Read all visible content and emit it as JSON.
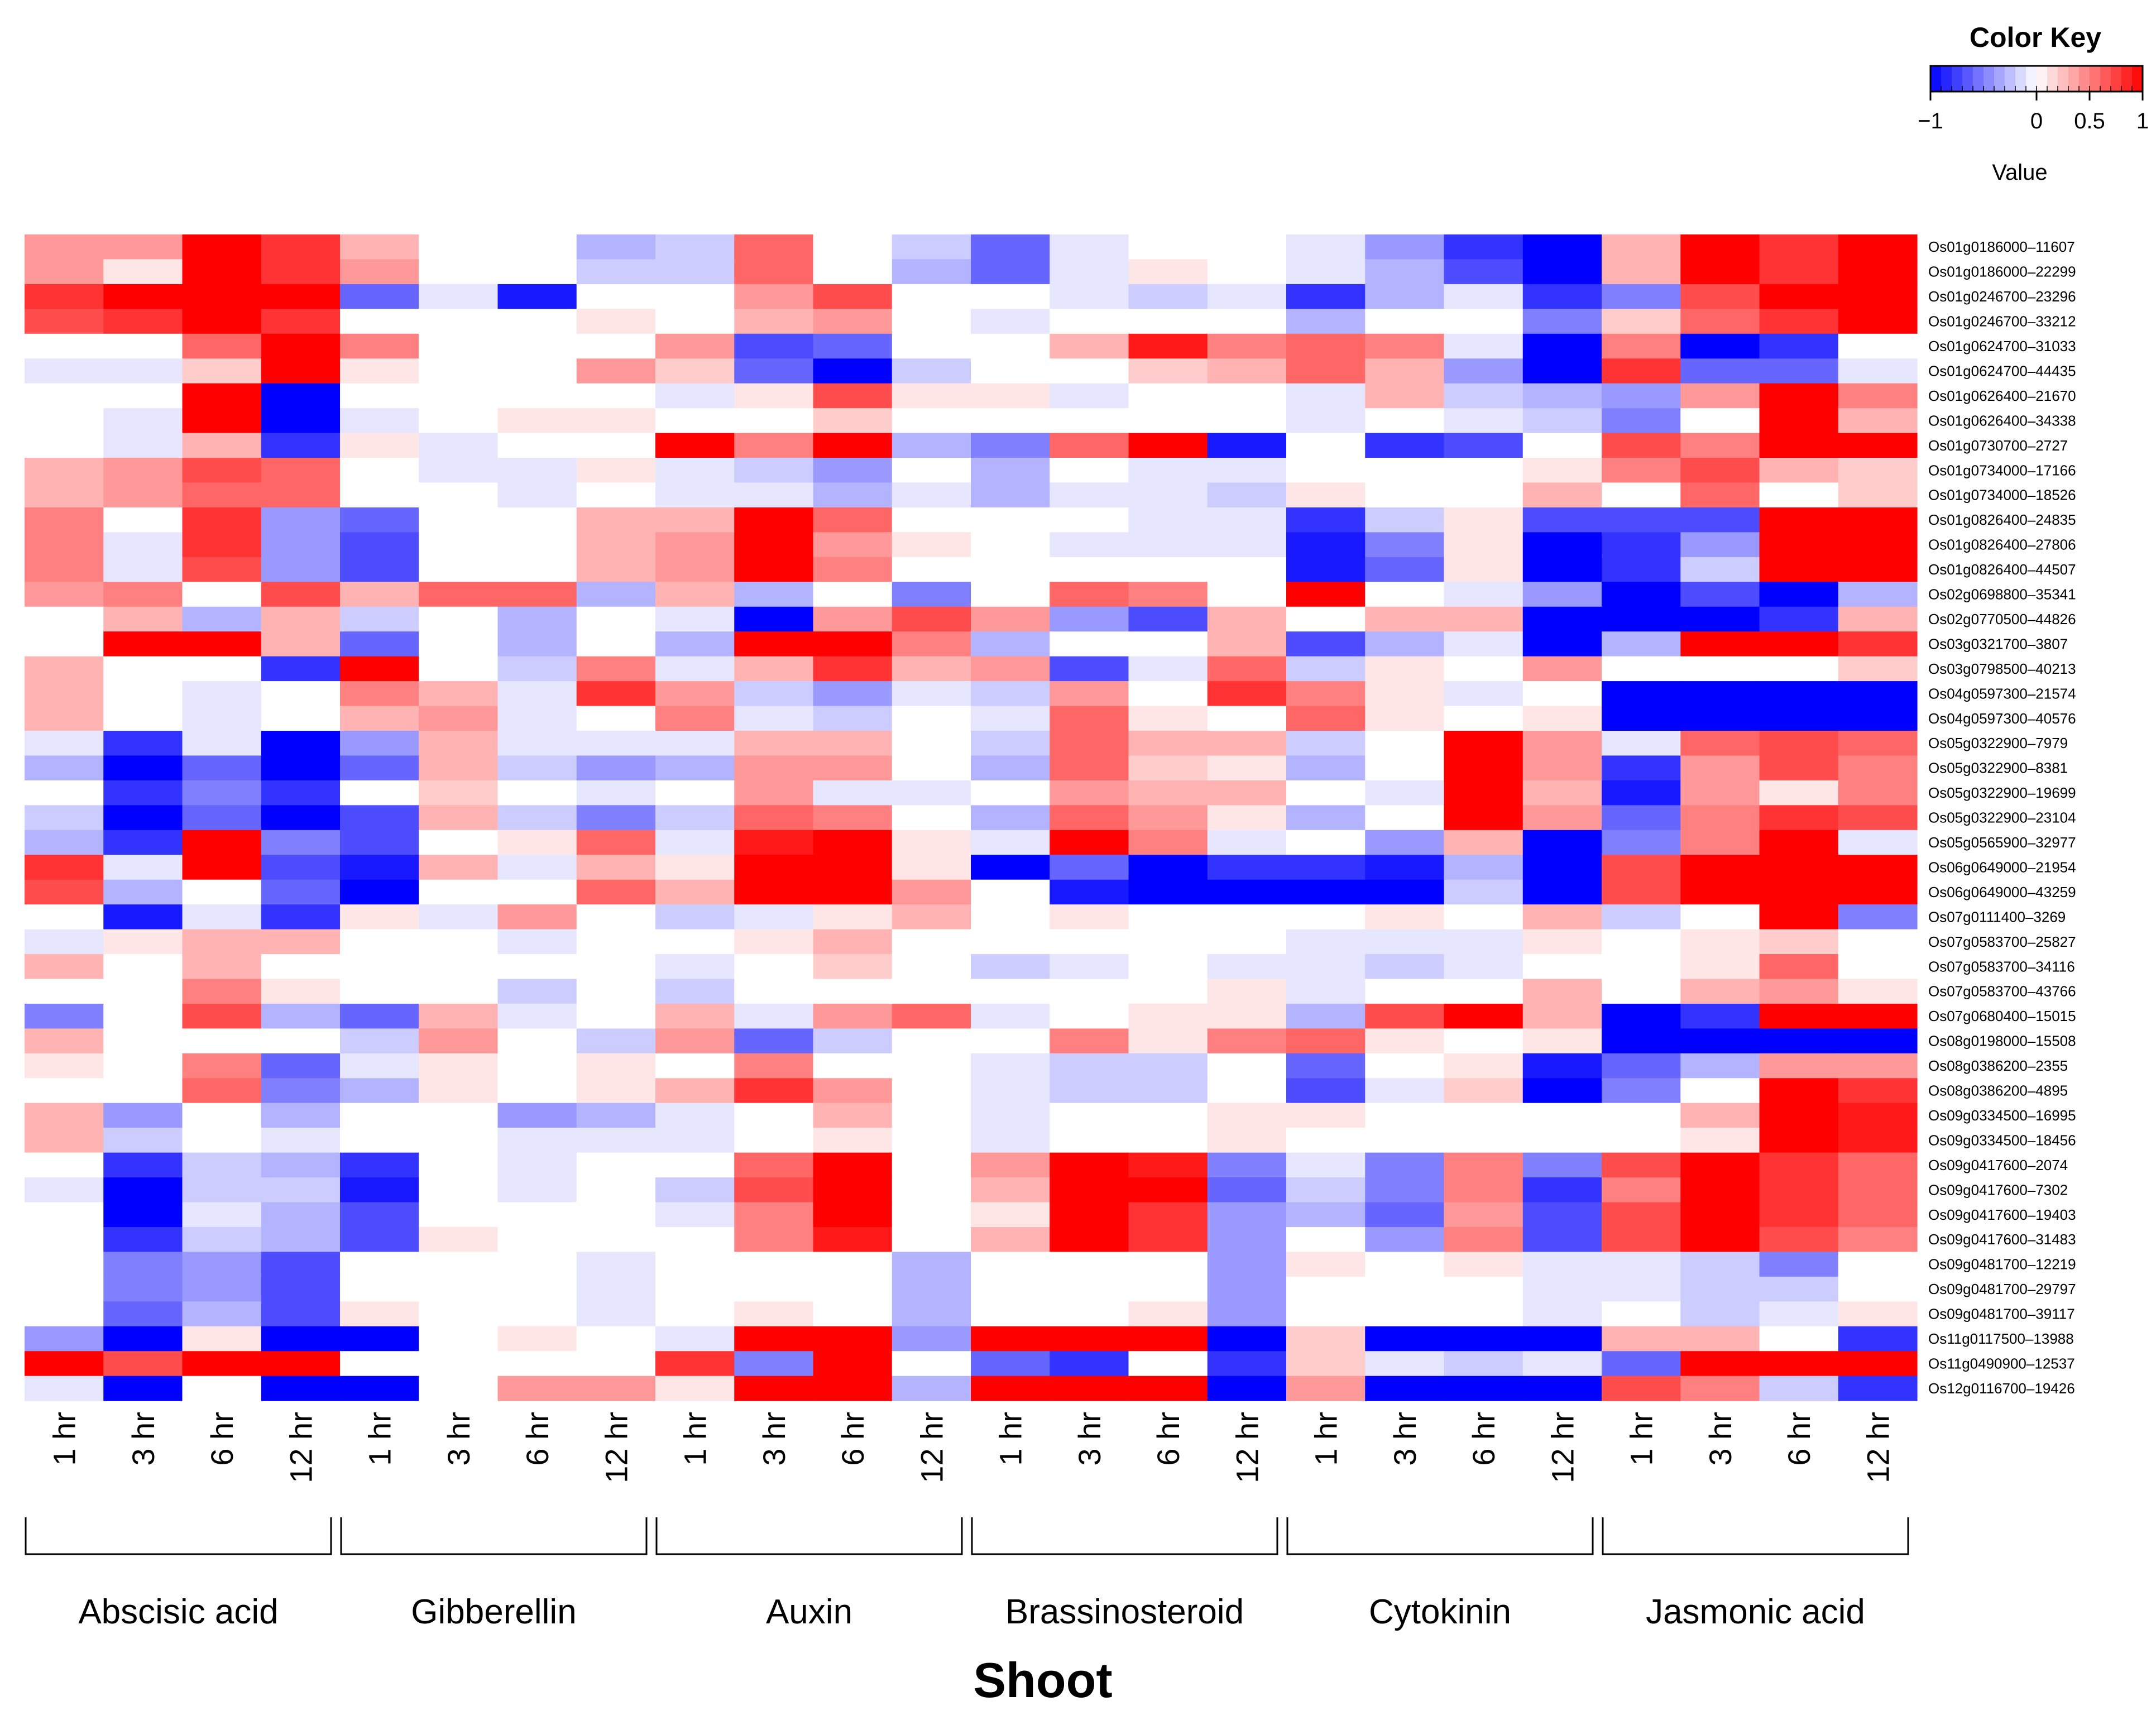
{
  "chart_data": {
    "type": "heatmap",
    "xlabel": "Shoot",
    "groups": [
      "Abscisic acid",
      "Gibberellin",
      "Auxin",
      "Brassinosteroid",
      "Cytokinin",
      "Jasmonic acid"
    ],
    "timepoints": [
      "1 hr",
      "3 hr",
      "6 hr",
      "12 hr"
    ],
    "rows": [
      "Os01g0186000–11607",
      "Os01g0186000–22299",
      "Os01g0246700–23296",
      "Os01g0246700–33212",
      "Os01g0624700–31033",
      "Os01g0624700–44435",
      "Os01g0626400–21670",
      "Os01g0626400–34338",
      "Os01g0730700–2727",
      "Os01g0734000–17166",
      "Os01g0734000–18526",
      "Os01g0826400–24835",
      "Os01g0826400–27806",
      "Os01g0826400–44507",
      "Os02g0698800–35341",
      "Os02g0770500–44826",
      "Os03g0321700–3807",
      "Os03g0798500–40213",
      "Os04g0597300–21574",
      "Os04g0597300–40576",
      "Os05g0322900–7979",
      "Os05g0322900–8381",
      "Os05g0322900–19699",
      "Os05g0322900–23104",
      "Os05g0565900–32977",
      "Os06g0649000–21954",
      "Os06g0649000–43259",
      "Os07g0111400–3269",
      "Os07g0583700–25827",
      "Os07g0583700–34116",
      "Os07g0583700–43766",
      "Os07g0680400–15015",
      "Os08g0198000–15508",
      "Os08g0386200–2355",
      "Os08g0386200–4895",
      "Os09g0334500–16995",
      "Os09g0334500–18456",
      "Os09g0417600–2074",
      "Os09g0417600–7302",
      "Os09g0417600–19403",
      "Os09g0417600–31483",
      "Os09g0481700–12219",
      "Os09g0481700–29797",
      "Os09g0481700–39117",
      "Os11g0117500–13988",
      "Os11g0490900–12537",
      "Os12g0116700–19426"
    ],
    "values": [
      [
        0.4,
        0.4,
        1,
        0.8,
        0.3,
        0,
        0,
        -0.3,
        -0.2,
        0.6,
        0,
        -0.2,
        -0.6,
        -0.1,
        0,
        0,
        -0.1,
        -0.4,
        -0.8,
        -1,
        0.3,
        1,
        0.8,
        1
      ],
      [
        0.4,
        0.1,
        1,
        0.8,
        0.4,
        0,
        0,
        -0.2,
        -0.2,
        0.6,
        0,
        -0.3,
        -0.6,
        -0.1,
        0.1,
        0,
        -0.1,
        -0.3,
        -0.7,
        -1,
        0.3,
        1,
        0.8,
        1
      ],
      [
        0.8,
        1,
        1,
        1,
        -0.6,
        -0.1,
        -0.9,
        0,
        0,
        0.4,
        0.7,
        0,
        0,
        -0.1,
        -0.2,
        -0.1,
        -0.8,
        -0.3,
        -0.1,
        -0.8,
        -0.5,
        0.7,
        1,
        1
      ],
      [
        0.7,
        0.8,
        1,
        0.8,
        0,
        0,
        0,
        0.1,
        0,
        0.3,
        0.4,
        0,
        -0.1,
        0,
        0,
        0,
        -0.3,
        0,
        0,
        -0.5,
        0.2,
        0.6,
        0.8,
        1
      ],
      [
        0,
        0,
        0.6,
        1,
        0.5,
        0,
        0,
        0,
        0.4,
        -0.7,
        -0.6,
        0,
        0,
        0.3,
        0.9,
        0.5,
        0.6,
        0.5,
        -0.1,
        -1,
        0.5,
        -1,
        -0.8,
        0
      ],
      [
        -0.1,
        -0.1,
        0.2,
        1,
        0.1,
        0,
        0,
        0.4,
        0.2,
        -0.6,
        -1,
        -0.2,
        0,
        0,
        0.2,
        0.3,
        0.6,
        0.3,
        -0.4,
        -1,
        0.8,
        -0.6,
        -0.6,
        -0.1
      ],
      [
        0,
        0,
        1,
        -1,
        0,
        0,
        0,
        0,
        -0.1,
        0.1,
        0.7,
        0.1,
        0.1,
        -0.1,
        0,
        0,
        -0.1,
        0.3,
        -0.2,
        -0.3,
        -0.4,
        0.4,
        1,
        0.5
      ],
      [
        0,
        -0.1,
        1,
        -1,
        -0.1,
        0,
        0.1,
        0.1,
        0,
        0,
        0.2,
        0,
        0,
        0,
        0,
        0,
        -0.1,
        0,
        -0.1,
        -0.2,
        -0.5,
        0,
        1,
        0.3
      ],
      [
        0,
        -0.1,
        0.3,
        -0.8,
        0.1,
        -0.1,
        0,
        0,
        1,
        0.5,
        1,
        -0.3,
        -0.5,
        0.6,
        1,
        -0.9,
        0,
        -0.8,
        -0.7,
        0,
        0.7,
        0.5,
        1,
        1
      ],
      [
        0.3,
        0.4,
        0.7,
        0.6,
        0,
        -0.1,
        -0.1,
        0.1,
        -0.1,
        -0.2,
        -0.4,
        0,
        -0.3,
        0,
        -0.1,
        -0.1,
        0,
        0,
        0,
        0.1,
        0.5,
        0.7,
        0.3,
        0.2
      ],
      [
        0.3,
        0.4,
        0.6,
        0.6,
        0,
        0,
        -0.1,
        0,
        -0.1,
        -0.1,
        -0.3,
        -0.1,
        -0.3,
        -0.1,
        -0.1,
        -0.2,
        0.1,
        0,
        0,
        0.3,
        0,
        0.6,
        0,
        0.2
      ],
      [
        0.5,
        0,
        0.8,
        -0.4,
        -0.6,
        0,
        0,
        0.3,
        0.3,
        1,
        0.6,
        0,
        0,
        0,
        -0.1,
        -0.1,
        -0.8,
        -0.2,
        0.1,
        -0.7,
        -0.7,
        -0.7,
        1,
        1
      ],
      [
        0.5,
        -0.1,
        0.8,
        -0.4,
        -0.7,
        0,
        0,
        0.3,
        0.4,
        1,
        0.4,
        0.1,
        0,
        -0.1,
        -0.1,
        -0.1,
        -0.9,
        -0.5,
        0.1,
        -1,
        -0.8,
        -0.4,
        1,
        1
      ],
      [
        0.5,
        -0.1,
        0.7,
        -0.4,
        -0.7,
        0,
        0,
        0.3,
        0.4,
        1,
        0.5,
        0,
        0,
        0,
        0,
        0,
        -0.9,
        -0.6,
        0.1,
        -1,
        -0.8,
        -0.2,
        1,
        1
      ],
      [
        0.4,
        0.5,
        0,
        0.7,
        0.3,
        0.6,
        0.6,
        -0.3,
        0.3,
        -0.3,
        0,
        -0.5,
        0,
        0.6,
        0.5,
        0,
        1,
        0,
        -0.1,
        -0.4,
        -1,
        -0.7,
        -1,
        -0.3
      ],
      [
        0,
        0.3,
        -0.3,
        0.3,
        -0.2,
        0,
        -0.3,
        0,
        -0.1,
        -1,
        0.4,
        0.7,
        0.4,
        -0.4,
        -0.7,
        0.3,
        0,
        0.3,
        0.3,
        -1,
        -1,
        -1,
        -0.8,
        0.3
      ],
      [
        0,
        1,
        1,
        0.3,
        -0.6,
        0,
        -0.3,
        0,
        -0.3,
        1,
        1,
        0.5,
        -0.3,
        0,
        0,
        0.3,
        -0.7,
        -0.3,
        -0.1,
        -1,
        -0.3,
        1,
        1,
        0.8
      ],
      [
        0.3,
        0,
        0,
        -0.8,
        1,
        0,
        -0.2,
        0.5,
        -0.1,
        0.3,
        0.8,
        0.3,
        0.4,
        -0.7,
        -0.1,
        0.6,
        -0.2,
        0.1,
        0,
        0.4,
        0,
        0,
        0,
        0.2
      ],
      [
        0.3,
        0,
        -0.1,
        0,
        0.5,
        0.3,
        -0.1,
        0.8,
        0.4,
        -0.2,
        -0.4,
        -0.1,
        -0.2,
        0.4,
        0,
        0.8,
        0.5,
        0.1,
        -0.1,
        0,
        -1,
        -1,
        -1,
        -1
      ],
      [
        0.3,
        0,
        -0.1,
        0,
        0.3,
        0.4,
        -0.1,
        0,
        0.5,
        -0.1,
        -0.2,
        0,
        -0.1,
        0.6,
        0.1,
        0,
        0.6,
        0.1,
        0,
        0.1,
        -1,
        -1,
        -1,
        -1
      ],
      [
        -0.1,
        -0.8,
        -0.1,
        -1,
        -0.4,
        0.3,
        -0.1,
        -0.1,
        -0.1,
        0.3,
        0.3,
        0,
        -0.2,
        0.6,
        0.3,
        0.3,
        -0.2,
        0,
        1,
        0.4,
        -0.1,
        0.6,
        0.7,
        0.6
      ],
      [
        -0.3,
        -1,
        -0.6,
        -1,
        -0.6,
        0.3,
        -0.2,
        -0.4,
        -0.3,
        0.4,
        0.4,
        0,
        -0.3,
        0.6,
        0.2,
        0.1,
        -0.3,
        0,
        1,
        0.4,
        -0.8,
        0.4,
        0.7,
        0.5
      ],
      [
        0,
        -0.8,
        -0.5,
        -0.8,
        0,
        0.2,
        0,
        -0.1,
        0,
        0.4,
        -0.1,
        -0.1,
        0,
        0.4,
        0.3,
        0.3,
        0,
        -0.1,
        1,
        0.3,
        -0.9,
        0.4,
        0.1,
        0.5
      ],
      [
        -0.2,
        -1,
        -0.6,
        -1,
        -0.7,
        0.3,
        -0.2,
        -0.5,
        -0.2,
        0.6,
        0.5,
        0,
        -0.3,
        0.6,
        0.4,
        0.1,
        -0.3,
        0,
        1,
        0.4,
        -0.6,
        0.5,
        0.8,
        0.7
      ],
      [
        -0.3,
        -0.8,
        1,
        -0.5,
        -0.7,
        0,
        0.1,
        0.6,
        -0.1,
        0.9,
        1,
        0.1,
        -0.1,
        1,
        0.5,
        -0.1,
        0,
        -0.4,
        0.3,
        -1,
        -0.5,
        0.5,
        1,
        -0.1
      ],
      [
        0.8,
        -0.1,
        1,
        -0.7,
        -0.9,
        0.3,
        -0.1,
        0.3,
        0.1,
        1,
        1,
        0.1,
        -1,
        -0.6,
        -1,
        -0.8,
        -0.8,
        -0.9,
        -0.3,
        -1,
        0.7,
        1,
        1,
        1
      ],
      [
        0.7,
        -0.3,
        0,
        -0.6,
        -1,
        0,
        0,
        0.6,
        0.3,
        1,
        1,
        0.4,
        0,
        -0.9,
        -1,
        -1,
        -1,
        -1,
        -0.2,
        -1,
        0.7,
        1,
        1,
        1
      ],
      [
        0,
        -0.9,
        -0.1,
        -0.8,
        0.1,
        -0.1,
        0.4,
        0,
        -0.2,
        -0.1,
        0.1,
        0.3,
        0,
        0.1,
        0,
        0,
        0,
        0.1,
        0,
        0.3,
        -0.2,
        0,
        1,
        -0.5
      ],
      [
        -0.1,
        0.1,
        0.3,
        0.3,
        0,
        0,
        -0.1,
        0,
        0,
        0.1,
        0.3,
        0,
        0,
        0,
        0,
        0,
        -0.1,
        -0.1,
        -0.1,
        0.1,
        0,
        0.1,
        0.2,
        0
      ],
      [
        0.3,
        0,
        0.3,
        0,
        0,
        0,
        0,
        0,
        -0.1,
        0,
        0.2,
        0,
        -0.2,
        -0.1,
        0,
        -0.1,
        -0.1,
        -0.2,
        -0.1,
        0,
        0,
        0.1,
        0.6,
        0
      ],
      [
        0,
        0,
        0.5,
        0.1,
        0,
        0,
        -0.2,
        0,
        -0.2,
        0,
        0,
        0,
        0,
        0,
        0,
        0.1,
        -0.1,
        0,
        0,
        0.3,
        0,
        0.3,
        0.4,
        0.1
      ],
      [
        -0.5,
        0,
        0.7,
        -0.3,
        -0.6,
        0.3,
        -0.1,
        0,
        0.3,
        -0.1,
        0.4,
        0.6,
        -0.1,
        0,
        0.1,
        0.1,
        -0.3,
        0.7,
        1,
        0.3,
        -1,
        -0.8,
        1,
        1
      ],
      [
        0.3,
        0,
        0,
        0,
        -0.2,
        0.4,
        0,
        -0.2,
        0.4,
        -0.6,
        -0.2,
        0,
        0,
        0.5,
        0.1,
        0.5,
        0.6,
        0.1,
        0,
        0.1,
        -1,
        -1,
        -1,
        -1
      ],
      [
        0.1,
        0,
        0.5,
        -0.6,
        -0.1,
        0.1,
        0,
        0.1,
        0,
        0.5,
        0,
        0,
        -0.1,
        -0.2,
        -0.2,
        0,
        -0.6,
        0,
        0.1,
        -0.9,
        -0.6,
        -0.3,
        0.4,
        0.4
      ],
      [
        0,
        0,
        0.6,
        -0.5,
        -0.3,
        0.1,
        0,
        0.1,
        0.3,
        0.8,
        0.4,
        0,
        -0.1,
        -0.2,
        -0.2,
        0,
        -0.7,
        -0.1,
        0.2,
        -1,
        -0.5,
        0,
        1,
        0.8
      ],
      [
        0.3,
        -0.4,
        0,
        -0.3,
        0,
        0,
        -0.4,
        -0.3,
        -0.1,
        0,
        0.3,
        0,
        -0.1,
        0,
        0,
        0.1,
        0.1,
        0,
        0,
        0,
        0,
        0.3,
        1,
        0.9
      ],
      [
        0.3,
        -0.2,
        0,
        -0.1,
        0,
        0,
        -0.1,
        -0.1,
        -0.1,
        0,
        0.1,
        0,
        -0.1,
        0,
        0,
        0.1,
        0,
        0,
        0,
        0,
        0,
        0.1,
        1,
        0.9
      ],
      [
        0,
        -0.8,
        -0.2,
        -0.3,
        -0.8,
        0,
        -0.1,
        0,
        0,
        0.6,
        1,
        0,
        0.4,
        1,
        0.9,
        -0.5,
        -0.1,
        -0.5,
        0.5,
        -0.5,
        0.7,
        1,
        0.8,
        0.6
      ],
      [
        -0.1,
        -1,
        -0.2,
        -0.2,
        -0.9,
        0,
        -0.1,
        0,
        -0.2,
        0.7,
        1,
        0,
        0.3,
        1,
        1,
        -0.6,
        -0.2,
        -0.5,
        0.5,
        -0.8,
        0.5,
        1,
        0.8,
        0.6
      ],
      [
        0,
        -1,
        -0.1,
        -0.3,
        -0.7,
        0,
        0,
        0,
        -0.1,
        0.5,
        1,
        0,
        0.1,
        1,
        0.8,
        -0.4,
        -0.3,
        -0.6,
        0.4,
        -0.7,
        0.7,
        1,
        0.8,
        0.6
      ],
      [
        0,
        -0.8,
        -0.2,
        -0.3,
        -0.7,
        0.1,
        0,
        0,
        0,
        0.5,
        0.9,
        0,
        0.3,
        1,
        0.8,
        -0.4,
        0,
        -0.4,
        0.5,
        -0.7,
        0.7,
        1,
        0.7,
        0.5
      ],
      [
        0,
        -0.5,
        -0.4,
        -0.7,
        0,
        0,
        0,
        -0.1,
        0,
        0,
        0,
        -0.3,
        0,
        0,
        0,
        -0.4,
        0.1,
        0,
        0.1,
        -0.1,
        -0.1,
        -0.2,
        -0.5,
        0
      ],
      [
        0,
        -0.5,
        -0.4,
        -0.7,
        0,
        0,
        0,
        -0.1,
        0,
        0,
        0,
        -0.3,
        0,
        0,
        0,
        -0.4,
        0,
        0,
        0,
        -0.1,
        -0.1,
        -0.2,
        -0.2,
        0
      ],
      [
        0,
        -0.6,
        -0.3,
        -0.7,
        0.1,
        0,
        0,
        -0.1,
        0,
        0.1,
        0,
        -0.3,
        0,
        0,
        0.1,
        -0.4,
        0,
        0,
        0,
        -0.1,
        0,
        -0.2,
        -0.1,
        0.1
      ],
      [
        -0.4,
        -1,
        0.1,
        -1,
        -1,
        0,
        0.1,
        0,
        -0.1,
        1,
        1,
        -0.4,
        1,
        1,
        1,
        -1,
        0.2,
        -1,
        -1,
        -1,
        0.3,
        0.3,
        0,
        -0.8
      ],
      [
        1,
        0.7,
        1,
        1,
        0,
        0,
        0,
        0,
        0.8,
        -0.5,
        1,
        0,
        -0.6,
        -0.8,
        0,
        -0.8,
        0.2,
        -0.1,
        -0.2,
        -0.1,
        -0.6,
        1,
        1,
        1
      ],
      [
        -0.1,
        -1,
        0,
        -1,
        -1,
        0,
        0.4,
        0.4,
        0.1,
        1,
        1,
        -0.3,
        1,
        1,
        1,
        -1,
        0.4,
        -1,
        -1,
        -1,
        0.7,
        0.5,
        -0.2,
        -0.8
      ]
    ],
    "color_key": {
      "title": "Color Key",
      "label": "Value",
      "ticks": [
        "−1",
        "0",
        "0.5",
        "1"
      ],
      "tick_values": [
        -1,
        0,
        0.5,
        1
      ],
      "low_color": "#0000ff",
      "mid_color": "#ffffff",
      "high_color": "#ff0000"
    }
  }
}
